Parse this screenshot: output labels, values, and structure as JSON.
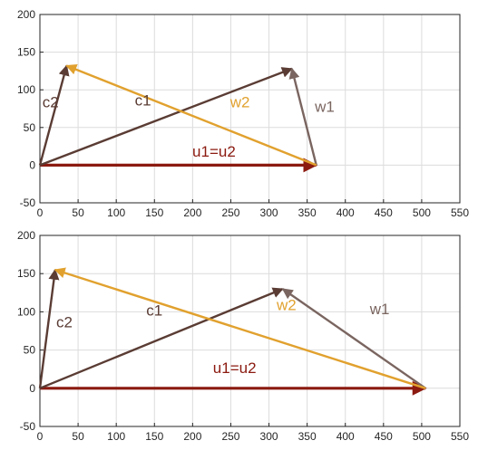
{
  "colors": {
    "u": "#8b1a10",
    "c": "#5a3c34",
    "w1": "#7a6560",
    "w2": "#e1a12e",
    "grid": "#dcdcdc",
    "axis": "#262626"
  },
  "chart_data": [
    {
      "type": "line",
      "title": "",
      "xlabel": "",
      "ylabel": "",
      "xlim": [
        0,
        550
      ],
      "ylim": [
        -50,
        200
      ],
      "xticks": [
        0,
        50,
        100,
        150,
        200,
        250,
        300,
        350,
        400,
        450,
        500,
        550
      ],
      "yticks": [
        -50,
        0,
        50,
        100,
        150,
        200
      ],
      "xtick_labels": [
        "0",
        "50",
        "100",
        "150",
        "200",
        "250",
        "300",
        "350",
        "400",
        "450",
        "500",
        "550"
      ],
      "ytick_labels": [
        "-50",
        "0",
        "50",
        "100",
        "150",
        "200"
      ],
      "grid": true,
      "vectors": [
        {
          "key": "u",
          "label": "u1=u2",
          "from": [
            0,
            0
          ],
          "to": [
            362,
            0
          ],
          "color_key": "u",
          "label_at": [
            228,
            11
          ]
        },
        {
          "key": "c1",
          "label": "c1",
          "from": [
            0,
            0
          ],
          "to": [
            330,
            128
          ],
          "color_key": "c",
          "label_at": [
            135,
            79
          ]
        },
        {
          "key": "w1",
          "label": "w1",
          "from": [
            362,
            0
          ],
          "to": [
            330,
            128
          ],
          "color_key": "w1",
          "label_at": [
            373,
            71
          ]
        },
        {
          "key": "c2",
          "label": "c2",
          "from": [
            0,
            0
          ],
          "to": [
            35,
            132
          ],
          "color_key": "c",
          "label_at": [
            14,
            77
          ]
        },
        {
          "key": "w2",
          "label": "w2",
          "from": [
            362,
            0
          ],
          "to": [
            35,
            132
          ],
          "color_key": "w2",
          "label_at": [
            262,
            77
          ]
        }
      ]
    },
    {
      "type": "line",
      "title": "",
      "xlabel": "",
      "ylabel": "",
      "xlim": [
        0,
        550
      ],
      "ylim": [
        -50,
        200
      ],
      "xticks": [
        0,
        50,
        100,
        150,
        200,
        250,
        300,
        350,
        400,
        450,
        500,
        550
      ],
      "yticks": [
        -50,
        0,
        50,
        100,
        150,
        200
      ],
      "xtick_labels": [
        "0",
        "50",
        "100",
        "150",
        "200",
        "250",
        "300",
        "350",
        "400",
        "450",
        "500",
        "550"
      ],
      "ytick_labels": [
        "-50",
        "0",
        "50",
        "100",
        "150",
        "200"
      ],
      "grid": true,
      "vectors": [
        {
          "key": "u",
          "label": "u1=u2",
          "from": [
            0,
            0
          ],
          "to": [
            505,
            0
          ],
          "color_key": "u",
          "label_at": [
            255,
            20
          ]
        },
        {
          "key": "c1",
          "label": "c1",
          "from": [
            0,
            0
          ],
          "to": [
            318,
            130
          ],
          "color_key": "c",
          "label_at": [
            150,
            95
          ]
        },
        {
          "key": "w1",
          "label": "w1",
          "from": [
            505,
            0
          ],
          "to": [
            318,
            130
          ],
          "color_key": "w1",
          "label_at": [
            445,
            97
          ]
        },
        {
          "key": "c2",
          "label": "c2",
          "from": [
            0,
            0
          ],
          "to": [
            20,
            155
          ],
          "color_key": "c",
          "label_at": [
            32,
            80
          ]
        },
        {
          "key": "w2",
          "label": "w2",
          "from": [
            505,
            0
          ],
          "to": [
            20,
            155
          ],
          "color_key": "w2",
          "label_at": [
            323,
            102
          ]
        }
      ]
    }
  ]
}
